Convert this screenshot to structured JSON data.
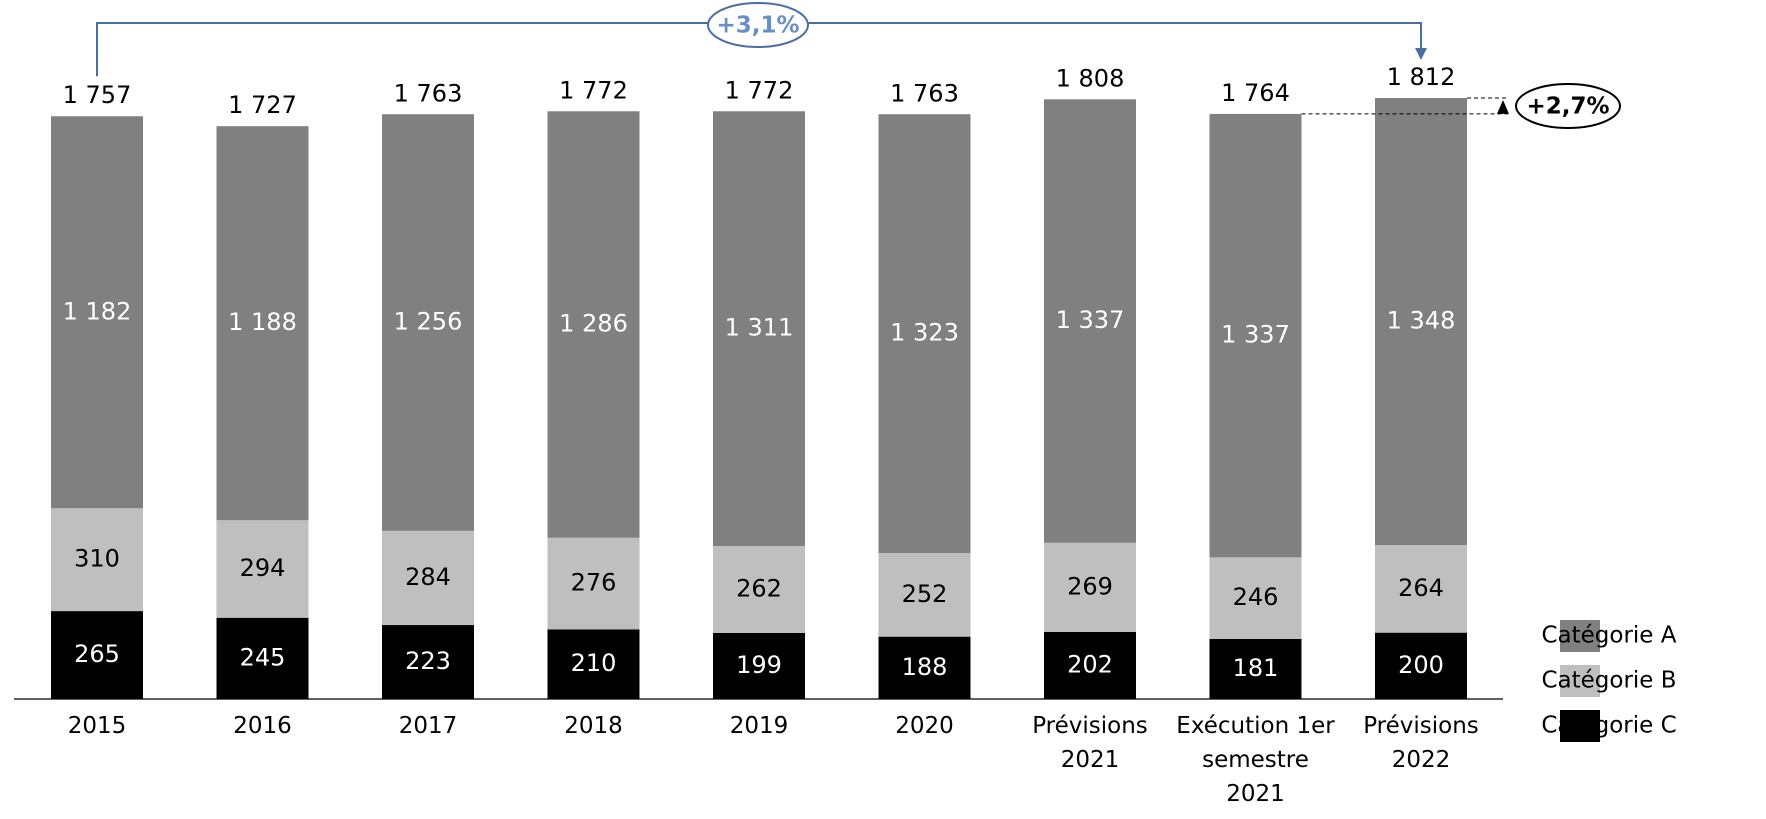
{
  "chart_data": {
    "type": "stacked_bar",
    "categories": [
      "2015",
      "2016",
      "2017",
      "2018",
      "2019",
      "2020",
      "Prévisions 2021",
      "Exécution 1er semestre 2021",
      "Prévisions 2022"
    ],
    "series": [
      {
        "name": "Catégorie C",
        "color": "#000000",
        "label_color": "#ffffff",
        "values": [
          265,
          245,
          223,
          210,
          199,
          188,
          202,
          181,
          200
        ]
      },
      {
        "name": "Catégorie B",
        "color": "#bfbfbf",
        "label_color": "#000000",
        "values": [
          310,
          294,
          284,
          276,
          262,
          252,
          269,
          246,
          264
        ]
      },
      {
        "name": "Catégorie A",
        "color": "#808080",
        "label_color": "#ffffff",
        "values": [
          1182,
          1188,
          1256,
          1286,
          1311,
          1323,
          1337,
          1337,
          1348
        ],
        "value_labels": [
          "1 182",
          "1 188",
          "1 256",
          "1 286",
          "1 311",
          "1 323",
          "1 337",
          "1 337",
          "1 348"
        ]
      }
    ],
    "totals": [
      1757,
      1727,
      1763,
      1772,
      1772,
      1763,
      1808,
      1764,
      1812
    ],
    "total_labels": [
      "1 757",
      "1 727",
      "1 763",
      "1 772",
      "1 772",
      "1 763",
      "1 808",
      "1 764",
      "1 812"
    ],
    "annotations": [
      "+3,1%",
      "+2,7%"
    ]
  }
}
